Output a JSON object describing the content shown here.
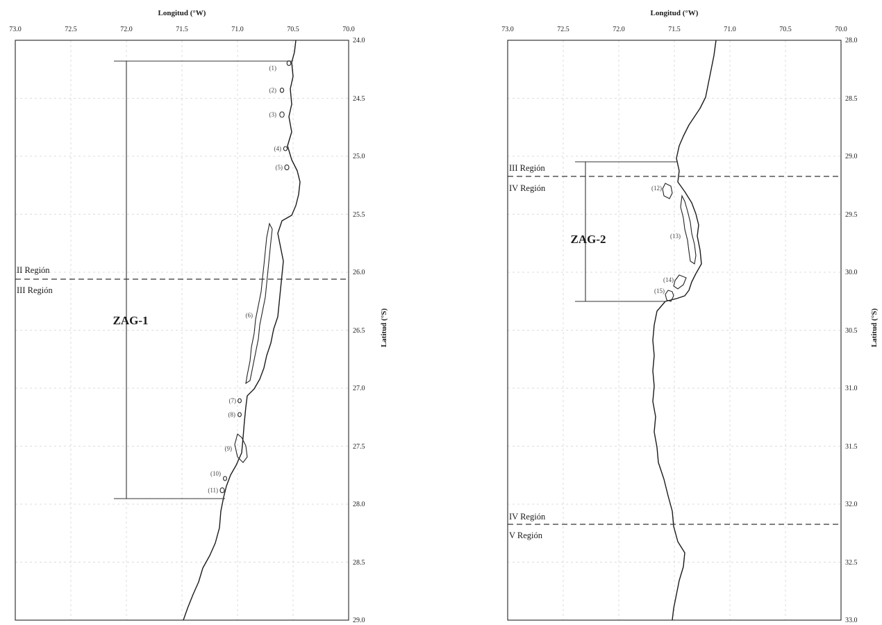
{
  "maps": [
    {
      "id": "zag1",
      "x_axis_title": "Longitud (°W)",
      "y_axis_title": "Latitud (°S)",
      "lon_range": [
        73.0,
        70.0
      ],
      "lat_range": [
        24.0,
        29.0
      ],
      "lon_ticks": [
        "73.0",
        "72.5",
        "72.0",
        "71.5",
        "71.0",
        "70.5",
        "70.0"
      ],
      "lat_ticks": [
        "24.0",
        "24.5",
        "25.0",
        "25.5",
        "26.0",
        "26.5",
        "27.0",
        "27.5",
        "28.0",
        "28.5",
        "29.0"
      ],
      "zone": {
        "label": "ZAG-1",
        "lat_start": 24.18,
        "lat_end": 27.95,
        "lon": 72.05
      },
      "boundaries": [
        {
          "lat": 26.05,
          "label_above": "II Región",
          "label_below": "III Región"
        }
      ],
      "areas": [
        {
          "label": "(1)",
          "lon": 70.53,
          "lat": 24.2
        },
        {
          "label": "(2)",
          "lon": 70.6,
          "lat": 24.44
        },
        {
          "label": "(3)",
          "lon": 70.6,
          "lat": 24.64
        },
        {
          "label": "(4)",
          "lon": 70.57,
          "lat": 24.95
        },
        {
          "label": "(5)",
          "lon": 70.56,
          "lat": 25.09
        },
        {
          "label": "(6)",
          "lon": 70.9,
          "lat": 26.42
        },
        {
          "label": "(7)",
          "lon": 70.96,
          "lat": 27.11
        },
        {
          "label": "(8)",
          "lon": 70.97,
          "lat": 27.23
        },
        {
          "label": "(9)",
          "lon": 70.99,
          "lat": 27.53
        },
        {
          "label": "(10)",
          "lon": 71.13,
          "lat": 27.78
        },
        {
          "label": "(11)",
          "lon": 71.12,
          "lat": 27.9
        }
      ]
    },
    {
      "id": "zag2",
      "x_axis_title": "Longitud (°W)",
      "y_axis_title": "Latitud (°S)",
      "lon_range": [
        73.0,
        70.0
      ],
      "lat_range": [
        28.0,
        33.0
      ],
      "lon_ticks": [
        "73.0",
        "72.5",
        "72.0",
        "71.5",
        "71.0",
        "70.5",
        "70.0"
      ],
      "lat_ticks": [
        "28.0",
        "28.5",
        "29.0",
        "29.5",
        "30.0",
        "30.5",
        "31.0",
        "31.5",
        "32.0",
        "32.5",
        "33.0"
      ],
      "zone": {
        "label": "ZAG-2",
        "lat_start": 29.05,
        "lat_end": 30.25,
        "lon": 72.3
      },
      "boundaries": [
        {
          "lat": 29.17,
          "label_above": "III Región",
          "label_below": "IV Región"
        },
        {
          "lat": 32.17,
          "label_above": "IV Región",
          "label_below": "V Región"
        }
      ],
      "areas": [
        {
          "label": "(12)",
          "lon": 71.57,
          "lat": 29.28
        },
        {
          "label": "(13)",
          "lon": 71.45,
          "lat": 29.67
        },
        {
          "label": "(14)",
          "lon": 71.5,
          "lat": 30.06
        },
        {
          "label": "(15)",
          "lon": 71.55,
          "lat": 30.16
        }
      ]
    }
  ]
}
